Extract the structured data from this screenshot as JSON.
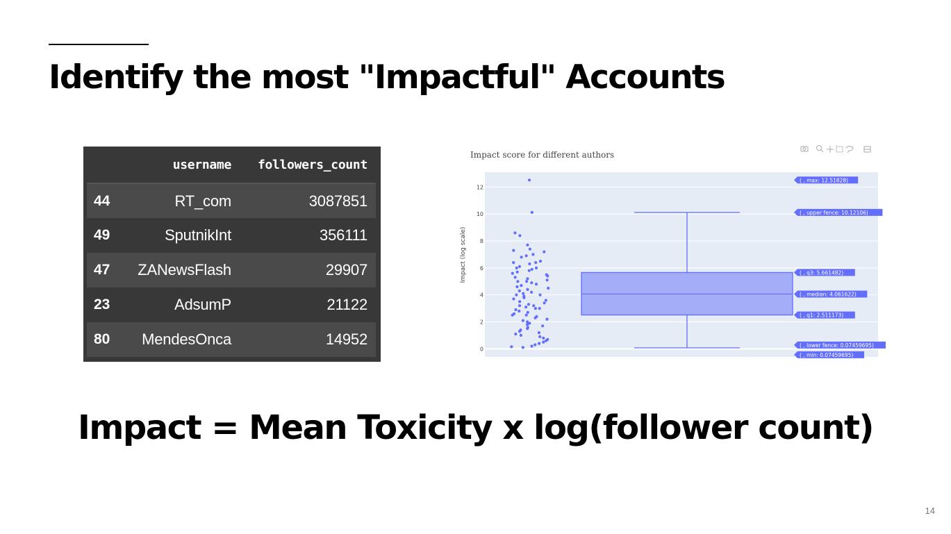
{
  "slide": {
    "title": "Identify the most \"Impactful\" Accounts",
    "formula": "Impact = Mean Toxicity x log(follower count)",
    "page_number": "14"
  },
  "table": {
    "columns": [
      "",
      "username",
      "followers_count"
    ],
    "rows": [
      {
        "index": "44",
        "username": "RT_com",
        "followers_count": "3087851"
      },
      {
        "index": "49",
        "username": "SputnikInt",
        "followers_count": "356111"
      },
      {
        "index": "47",
        "username": "ZANewsFlash",
        "followers_count": "29907"
      },
      {
        "index": "23",
        "username": "AdsumP",
        "followers_count": "21122"
      },
      {
        "index": "80",
        "username": "MendesOnca",
        "followers_count": "14952"
      }
    ]
  },
  "chart_data": {
    "type": "box",
    "title": "Impact score for different authors",
    "ylabel": "Impact (log scale)",
    "xlabel": "",
    "ylim": [
      -0.6,
      13.1
    ],
    "yticks": [
      0,
      2,
      4,
      6,
      8,
      10,
      12
    ],
    "grid": true,
    "box": {
      "min": 0.07459695,
      "lower_fence": 0.07459695,
      "q1": 2.511173,
      "median": 4.061622,
      "q3": 5.661482,
      "upper_fence": 10.12106,
      "max": 12.51828
    },
    "hover_labels": [
      {
        "key": "max",
        "text": "( , max: 12.51828)"
      },
      {
        "key": "upper_fence",
        "text": "( , upper fence: 10.12106)"
      },
      {
        "key": "q3",
        "text": "( , q3: 5.661482)"
      },
      {
        "key": "median",
        "text": "( , median: 4.061622)"
      },
      {
        "key": "q1",
        "text": "( , q1: 2.511173)"
      },
      {
        "key": "lower_fence",
        "text": "( , lower fence: 0.07459695)"
      },
      {
        "key": "min",
        "text": "( , min: 0.07459695)"
      }
    ],
    "points_y": [
      12.52,
      10.12,
      8.6,
      8.4,
      7.7,
      7.4,
      7.3,
      7.2,
      7.0,
      6.9,
      6.8,
      6.5,
      6.4,
      6.4,
      6.3,
      6.1,
      6.0,
      6.0,
      5.9,
      5.8,
      5.7,
      5.6,
      5.5,
      5.4,
      5.3,
      5.2,
      5.1,
      5.0,
      5.0,
      4.9,
      4.8,
      4.7,
      4.6,
      4.5,
      4.4,
      4.3,
      4.2,
      4.1,
      4.0,
      4.0,
      3.9,
      3.8,
      3.7,
      3.6,
      3.5,
      3.4,
      3.3,
      3.2,
      3.2,
      3.1,
      3.0,
      3.0,
      2.9,
      2.8,
      2.7,
      2.6,
      2.5,
      2.5,
      2.4,
      2.3,
      2.2,
      2.1,
      2.0,
      1.9,
      1.8,
      1.7,
      1.6,
      1.5,
      1.4,
      1.3,
      1.2,
      1.1,
      1.0,
      0.9,
      0.8,
      0.7,
      0.6,
      0.5,
      0.4,
      0.3,
      0.2,
      0.15,
      0.1
    ],
    "color": "#636efa"
  }
}
